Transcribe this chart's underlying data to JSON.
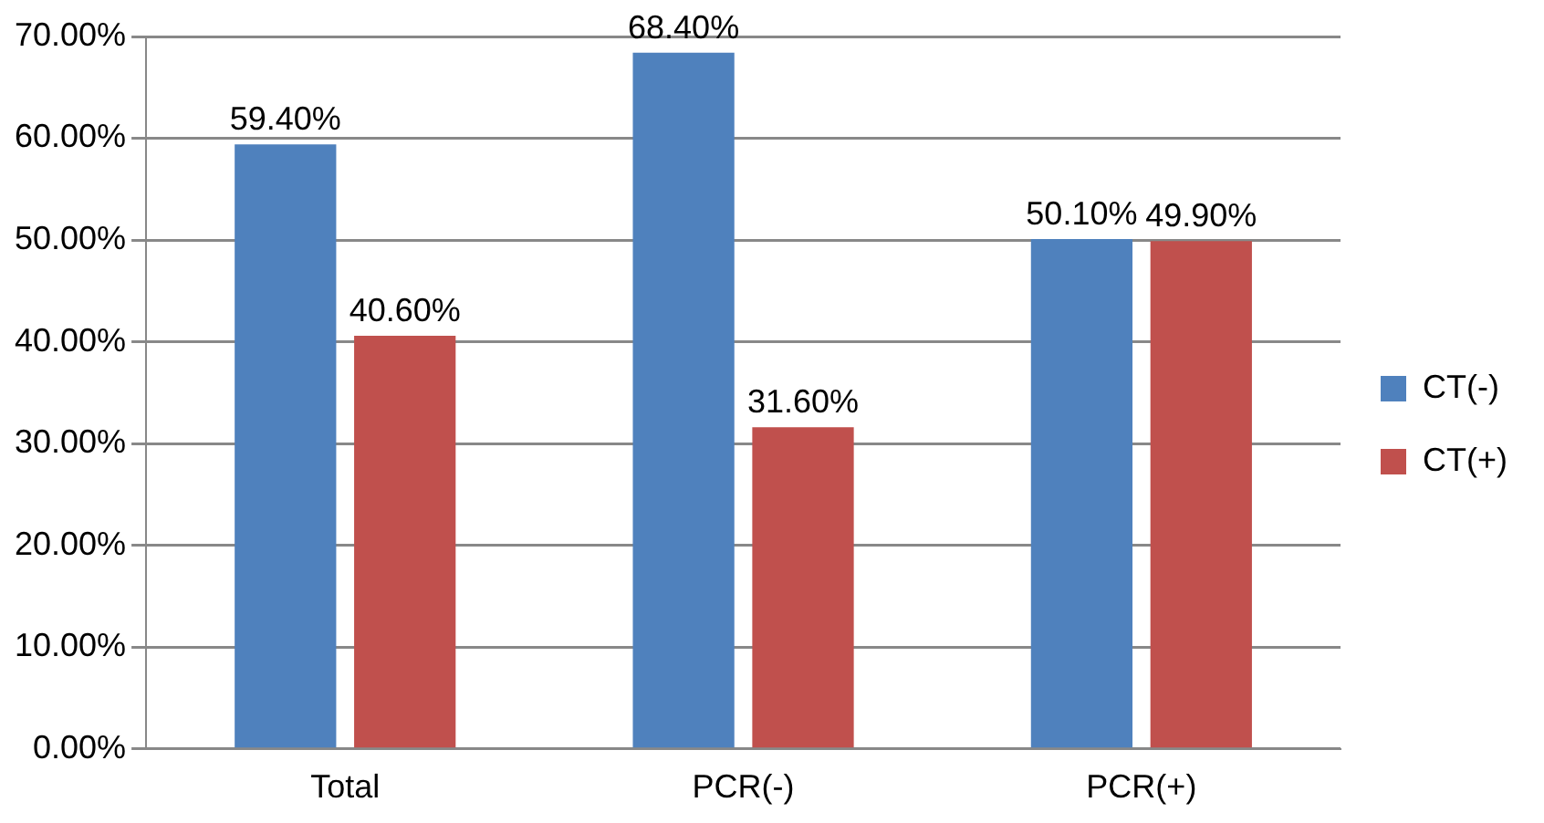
{
  "chart_data": {
    "type": "bar",
    "categories": [
      "Total",
      "PCR(-)",
      "PCR(+)"
    ],
    "series": [
      {
        "name": "CT(-)",
        "color": "#4f81bd",
        "values": [
          59.4,
          68.4,
          50.1
        ],
        "value_labels": [
          "59.40%",
          "68.40%",
          "50.10%"
        ]
      },
      {
        "name": "CT(+)",
        "color": "#c0504d",
        "values": [
          40.6,
          31.6,
          49.9
        ],
        "value_labels": [
          "40.60%",
          "31.60%",
          "49.90%"
        ]
      }
    ],
    "ylim": [
      0,
      70
    ],
    "yticks": [
      {
        "value": 0,
        "label": "0.00%"
      },
      {
        "value": 10,
        "label": "10.00%"
      },
      {
        "value": 20,
        "label": "20.00%"
      },
      {
        "value": 30,
        "label": "30.00%"
      },
      {
        "value": 40,
        "label": "40.00%"
      },
      {
        "value": 50,
        "label": "50.00%"
      },
      {
        "value": 60,
        "label": "60.00%"
      },
      {
        "value": 70,
        "label": "70.00%"
      }
    ],
    "grid": "y",
    "legend": "right"
  }
}
